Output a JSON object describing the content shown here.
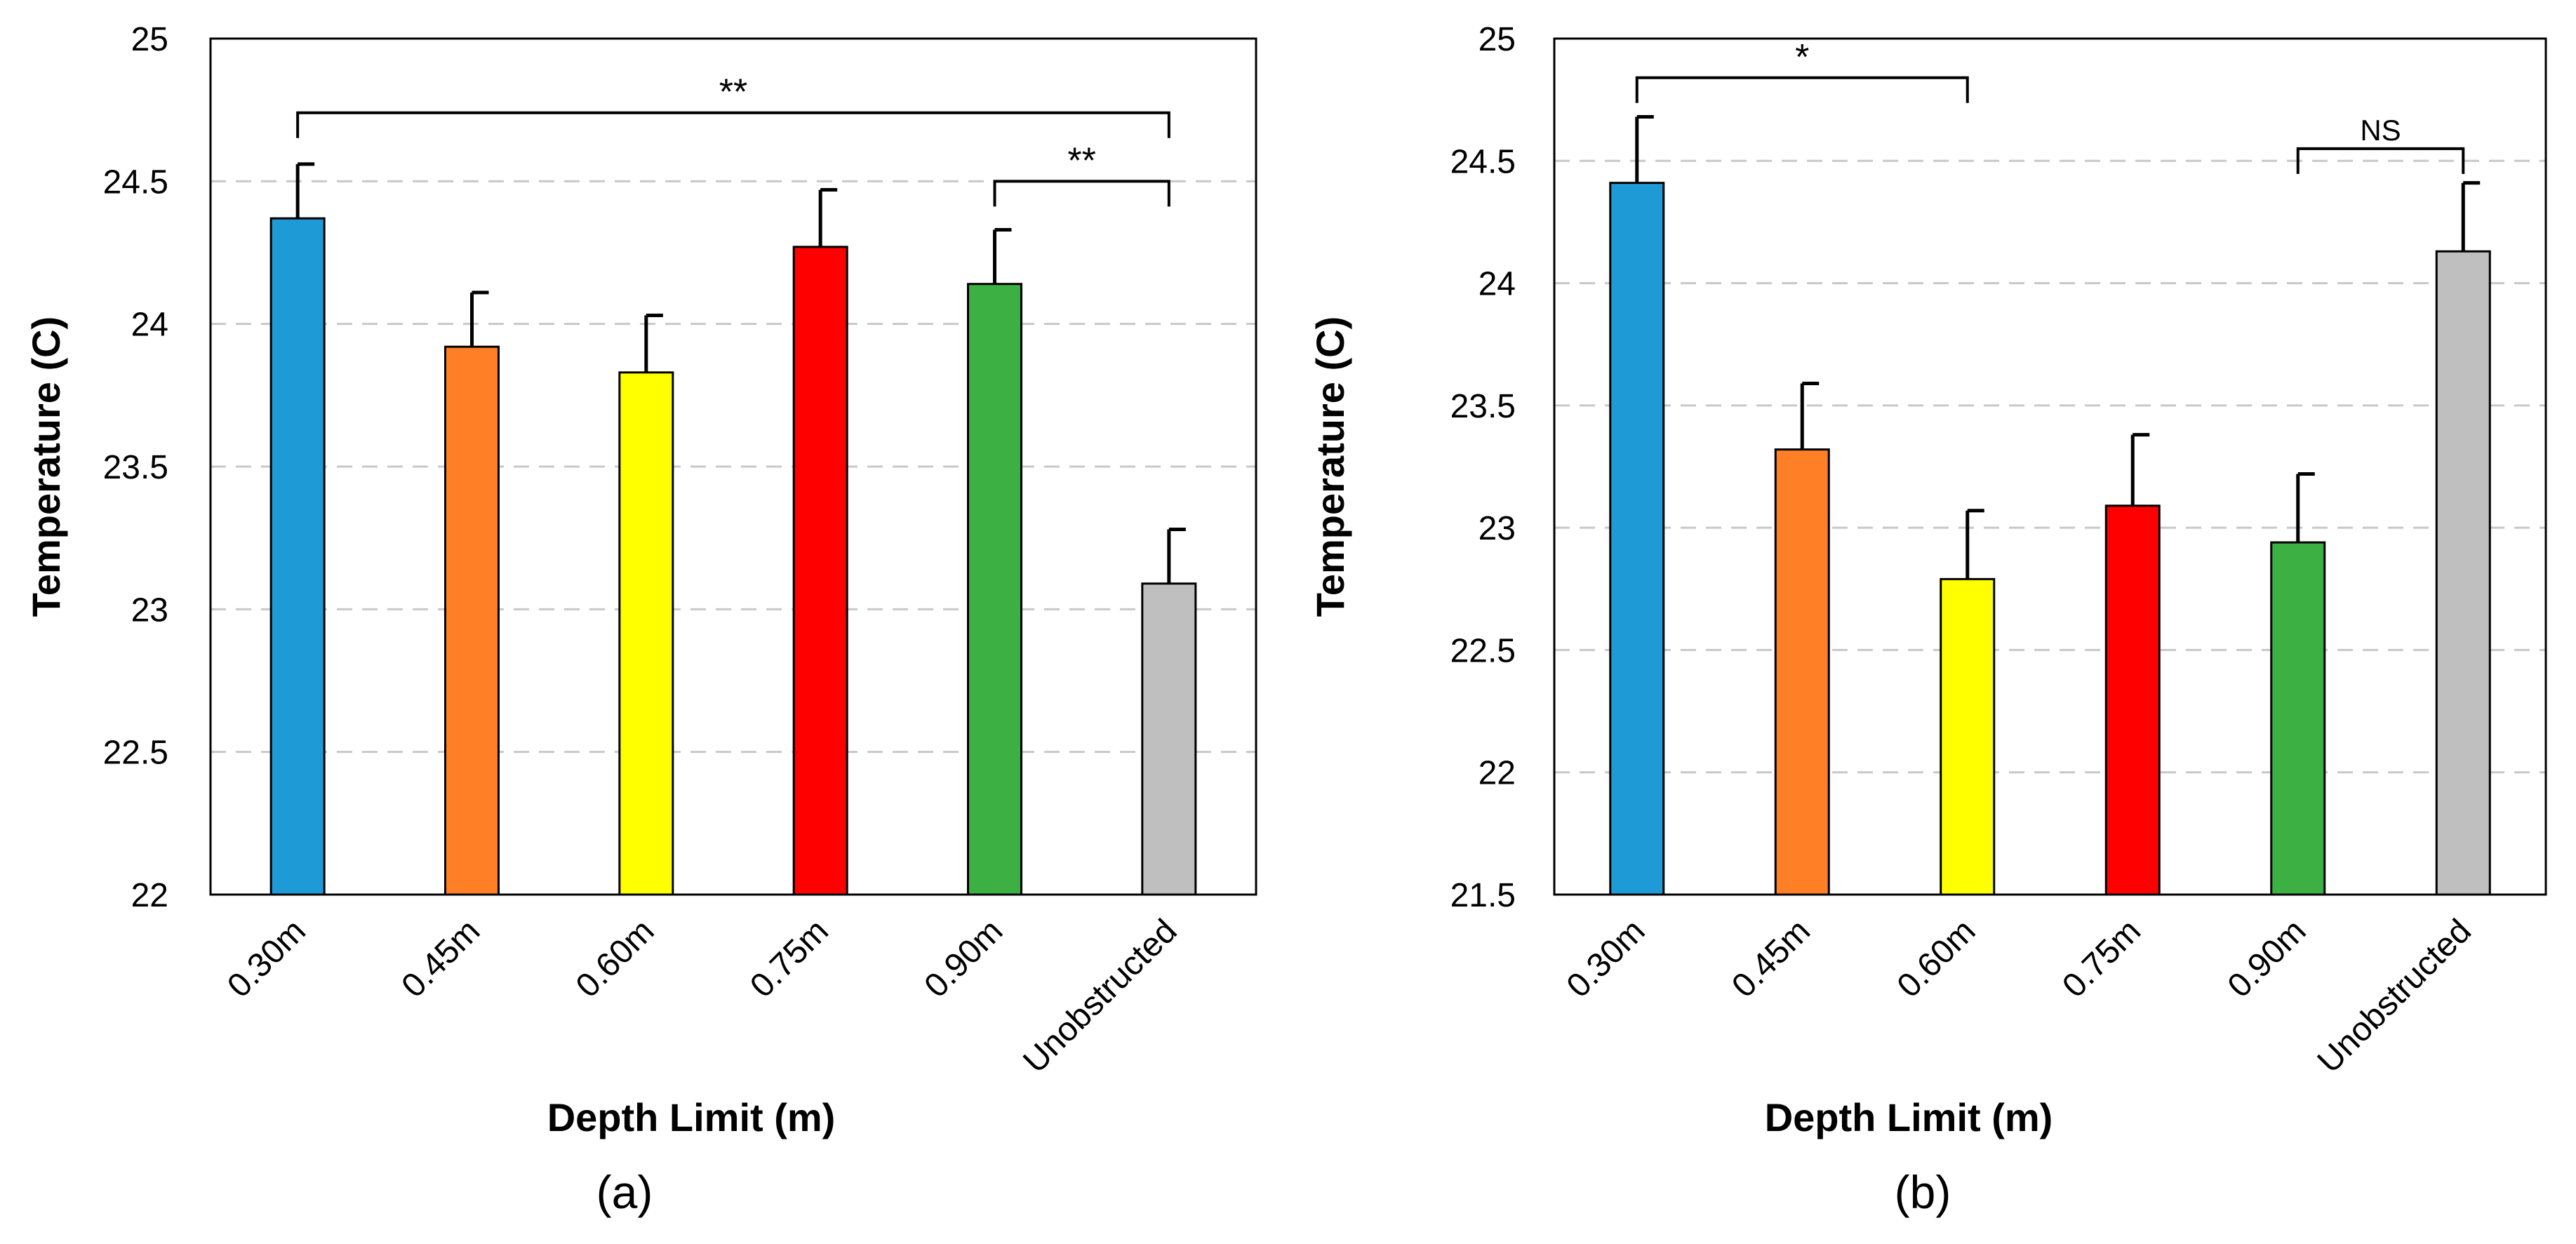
{
  "chart_data": [
    {
      "type": "bar",
      "panel_label": "(a)",
      "title": "",
      "xlabel": "Depth Limit (m)",
      "ylabel": "Temperature (C)",
      "ylim": [
        22,
        25
      ],
      "yticks": [
        "22",
        "22.5",
        "23",
        "23.5",
        "24",
        "24.5",
        "25"
      ],
      "grid": true,
      "categories": [
        "0.30m",
        "0.45m",
        "0.60m",
        "0.75m",
        "0.90m",
        "Unobstructed"
      ],
      "values": [
        24.37,
        23.92,
        23.83,
        24.27,
        24.14,
        23.09
      ],
      "errors": [
        0.19,
        0.19,
        0.2,
        0.2,
        0.19,
        0.19
      ],
      "colors": [
        "#1e9bd7",
        "#ff7f27",
        "#ffff00",
        "#ff0000",
        "#3cb043",
        "#bfbfbf"
      ],
      "annotations": [
        {
          "text": "**",
          "from": 0,
          "to": 5,
          "y": 24.74
        },
        {
          "text": "**",
          "from": 4,
          "to": 5,
          "y": 24.5
        }
      ]
    },
    {
      "type": "bar",
      "panel_label": "(b)",
      "title": "",
      "xlabel": "Depth Limit (m)",
      "ylabel": "Temperature (C)",
      "ylim": [
        21.5,
        25
      ],
      "yticks": [
        "21.5",
        "22",
        "22.5",
        "23",
        "23.5",
        "24",
        "24.5",
        "25"
      ],
      "grid": true,
      "categories": [
        "0.30m",
        "0.45m",
        "0.60m",
        "0.75m",
        "0.90m",
        "Unobstructed"
      ],
      "values": [
        24.41,
        23.32,
        22.79,
        23.09,
        22.94,
        24.13
      ],
      "errors": [
        0.27,
        0.27,
        0.28,
        0.29,
        0.28,
        0.28
      ],
      "colors": [
        "#1e9bd7",
        "#ff7f27",
        "#ffff00",
        "#ff0000",
        "#3cb043",
        "#bfbfbf"
      ],
      "annotations": [
        {
          "text": "*",
          "from": 0,
          "to": 2,
          "y": 24.84
        },
        {
          "text": "NS",
          "from": 4,
          "to": 5,
          "y": 24.55
        }
      ]
    }
  ]
}
